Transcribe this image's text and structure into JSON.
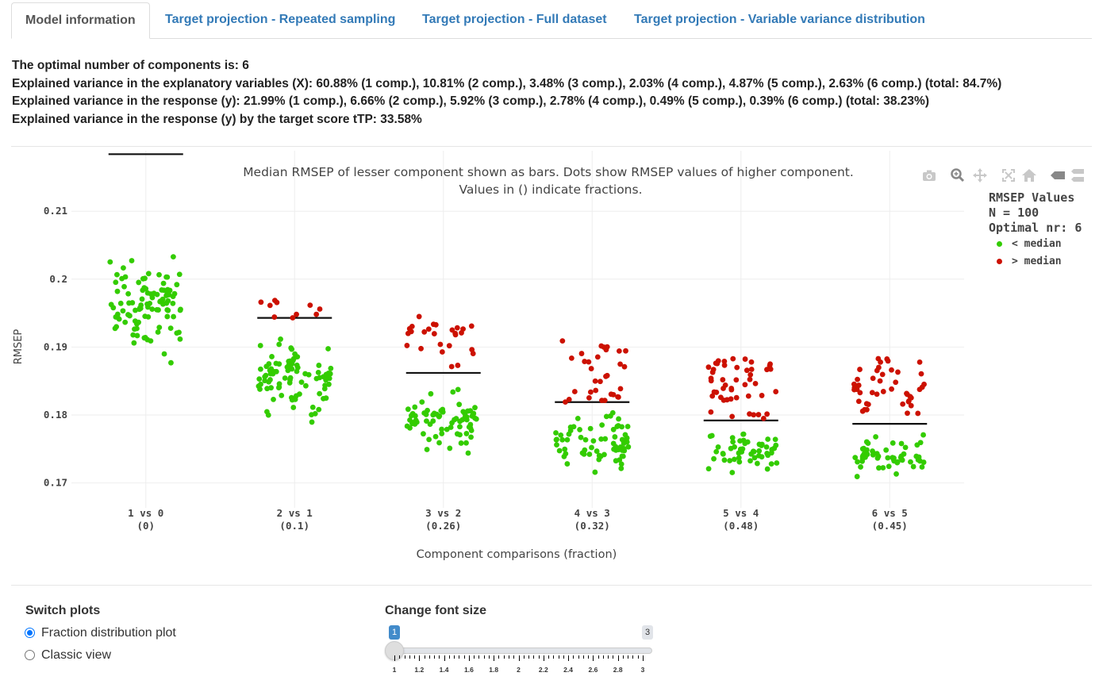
{
  "tabs": [
    {
      "label": "Model information",
      "active": true
    },
    {
      "label": "Target projection - Repeated sampling",
      "active": false
    },
    {
      "label": "Target projection - Full dataset",
      "active": false
    },
    {
      "label": "Target projection - Variable variance distribution",
      "active": false
    }
  ],
  "info": {
    "line1": "The optimal number of components is: 6",
    "line2": "Explained variance in the explanatory variables (X): 60.88% (1 comp.), 10.81% (2 comp.), 3.48% (3 comp.), 2.03% (4 comp.), 4.87% (5 comp.), 2.63% (6 comp.) (total: 84.7%)",
    "line3": "Explained variance in the response (y): 21.99% (1 comp.), 6.66% (2 comp.), 5.92% (3 comp.), 2.78% (4 comp.), 0.49% (5 comp.), 0.39% (6 comp.) (total: 38.23%)",
    "line4": "Explained variance in the response (y) by the target score tTP: 33.58%"
  },
  "modebar": {
    "icons": [
      "camera-icon",
      "zoom-icon",
      "pan-icon",
      "autoscale-icon",
      "home-icon",
      "hover-closest-icon",
      "hover-compare-icon"
    ]
  },
  "legend": {
    "title1": "RMSEP Values",
    "title2": "N = 100",
    "title3": "Optimal nr: 6",
    "items": [
      {
        "label": "< median",
        "color": "#33cc00"
      },
      {
        "label": "> median",
        "color": "#cc1100"
      }
    ]
  },
  "chart_data": {
    "type": "scatter",
    "title_line1": "Median RMSEP of lesser component shown as bars. Dots show RMSEP values of higher component.",
    "title_line2": "Values in () indicate fractions.",
    "xlabel": "Component comparisons (fraction)",
    "ylabel": "RMSEP",
    "ylim": [
      0.1675,
      0.2175
    ],
    "yticks": [
      0.17,
      0.18,
      0.19,
      0.2,
      0.21
    ],
    "ytick_labels": [
      "0.17",
      "0.18",
      "0.19",
      "0.2",
      "0.21"
    ],
    "grid": true,
    "categories": [
      {
        "label": "1 vs 0",
        "fraction": "(0)",
        "median": 0.2184,
        "ymin": 0.1815,
        "ymax": 0.2062,
        "frac": 0.0
      },
      {
        "label": "2 vs 1",
        "fraction": "(0.1)",
        "median": 0.1943,
        "ymin": 0.174,
        "ymax": 0.199,
        "frac": 0.1
      },
      {
        "label": "3 vs 2",
        "fraction": "(0.26)",
        "median": 0.1862,
        "ymin": 0.1695,
        "ymax": 0.1945,
        "frac": 0.26
      },
      {
        "label": "4 vs 3",
        "fraction": "(0.32)",
        "median": 0.1819,
        "ymin": 0.1675,
        "ymax": 0.191,
        "frac": 0.32
      },
      {
        "label": "5 vs 4",
        "fraction": "(0.48)",
        "median": 0.1792,
        "ymin": 0.168,
        "ymax": 0.1885,
        "frac": 0.48
      },
      {
        "label": "6 vs 5",
        "fraction": "(0.45)",
        "median": 0.1787,
        "ymin": 0.1675,
        "ymax": 0.1885,
        "frac": 0.45
      }
    ],
    "n_points_per_category": 100,
    "series": [
      {
        "name": "< median",
        "color": "#33cc00"
      },
      {
        "name": "> median",
        "color": "#cc1100"
      }
    ]
  },
  "controls": {
    "switch_title": "Switch plots",
    "options": [
      {
        "label": "Fraction distribution plot",
        "selected": true
      },
      {
        "label": "Classic view",
        "selected": false
      }
    ],
    "font_title": "Change font size",
    "slider": {
      "min_label": "1",
      "max_label": "3",
      "value": 1,
      "tick_labels": [
        "1",
        "1.2",
        "1.4",
        "1.6",
        "1.8",
        "2",
        "2.2",
        "2.4",
        "2.6",
        "2.8",
        "3"
      ]
    }
  }
}
